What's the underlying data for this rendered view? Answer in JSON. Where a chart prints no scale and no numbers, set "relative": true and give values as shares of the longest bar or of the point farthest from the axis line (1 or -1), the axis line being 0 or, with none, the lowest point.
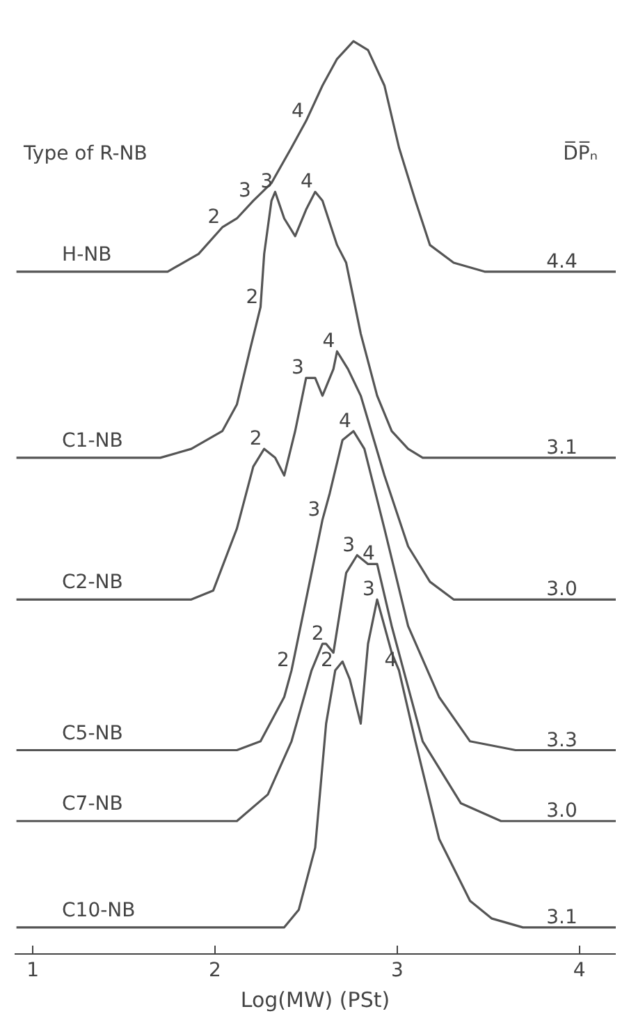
{
  "chart_data": {
    "type": "line",
    "relative": true,
    "xlabel": "Log(MW) (PSt)",
    "legend_title": "Type of R-NB",
    "xlim": [
      0.9,
      4.2
    ],
    "xticks": [
      1,
      2,
      3,
      4
    ],
    "grid": false,
    "marker": "none",
    "line_style": "solid",
    "series": [
      {
        "name": "H-NB",
        "color": "#555555",
        "x": [
          0.91,
          1.74,
          1.91,
          2.04,
          2.12,
          2.21,
          2.31,
          2.42,
          2.5,
          2.59,
          2.67,
          2.76,
          2.84,
          2.93,
          3.01,
          3.1,
          3.18,
          3.31,
          3.48,
          4.2
        ],
        "values": [
          0.74,
          0.74,
          0.76,
          0.79,
          0.8,
          0.82,
          0.84,
          0.88,
          0.91,
          0.95,
          0.98,
          1.0,
          0.99,
          0.95,
          0.88,
          0.82,
          0.77,
          0.75,
          0.74,
          0.74
        ]
      },
      {
        "name": "C1-NB",
        "color": "#555555",
        "x": [
          0.91,
          1.7,
          1.87,
          2.04,
          2.12,
          2.19,
          2.25,
          2.27,
          2.31,
          2.33,
          2.38,
          2.44,
          2.5,
          2.55,
          2.59,
          2.67,
          2.72,
          2.8,
          2.89,
          2.97,
          3.06,
          3.14,
          4.2
        ],
        "values": [
          0.53,
          0.53,
          0.54,
          0.56,
          0.59,
          0.65,
          0.7,
          0.76,
          0.82,
          0.83,
          0.8,
          0.78,
          0.81,
          0.83,
          0.82,
          0.77,
          0.75,
          0.67,
          0.6,
          0.56,
          0.54,
          0.53,
          0.53
        ]
      },
      {
        "name": "C2-NB",
        "color": "#555555",
        "x": [
          0.91,
          1.87,
          1.99,
          2.12,
          2.21,
          2.27,
          2.33,
          2.38,
          2.44,
          2.5,
          2.55,
          2.59,
          2.65,
          2.67,
          2.73,
          2.8,
          2.93,
          3.06,
          3.18,
          3.31,
          4.2
        ],
        "values": [
          0.37,
          0.37,
          0.38,
          0.45,
          0.52,
          0.54,
          0.53,
          0.51,
          0.56,
          0.62,
          0.62,
          0.6,
          0.63,
          0.65,
          0.63,
          0.6,
          0.51,
          0.43,
          0.39,
          0.37,
          0.37
        ]
      },
      {
        "name": "C5-NB",
        "color": "#555555",
        "x": [
          0.91,
          2.12,
          2.25,
          2.38,
          2.42,
          2.5,
          2.59,
          2.63,
          2.7,
          2.76,
          2.82,
          2.93,
          3.06,
          3.23,
          3.4,
          3.65,
          4.2
        ],
        "values": [
          0.2,
          0.2,
          0.21,
          0.26,
          0.29,
          0.37,
          0.46,
          0.49,
          0.55,
          0.56,
          0.54,
          0.45,
          0.34,
          0.26,
          0.21,
          0.2,
          0.2
        ]
      },
      {
        "name": "C7-NB",
        "color": "#555555",
        "x": [
          0.91,
          2.12,
          2.29,
          2.42,
          2.53,
          2.59,
          2.61,
          2.65,
          2.72,
          2.78,
          2.84,
          2.89,
          2.97,
          3.14,
          3.35,
          3.57,
          4.2
        ],
        "values": [
          0.12,
          0.12,
          0.15,
          0.21,
          0.29,
          0.32,
          0.32,
          0.31,
          0.4,
          0.42,
          0.41,
          0.41,
          0.34,
          0.21,
          0.14,
          0.12,
          0.12
        ]
      },
      {
        "name": "C10-NB",
        "color": "#555555",
        "x": [
          0.91,
          2.38,
          2.46,
          2.55,
          2.61,
          2.66,
          2.7,
          2.74,
          2.8,
          2.84,
          2.89,
          2.93,
          2.97,
          3.01,
          3.1,
          3.23,
          3.4,
          3.52,
          3.69,
          4.2
        ],
        "values": [
          0.0,
          0.0,
          0.02,
          0.09,
          0.23,
          0.29,
          0.3,
          0.28,
          0.23,
          0.32,
          0.37,
          0.34,
          0.31,
          0.29,
          0.21,
          0.1,
          0.03,
          0.01,
          0.0,
          0.0
        ]
      }
    ],
    "annotations": [
      "D̅P̅ₙ",
      {
        "text": "4.4",
        "x": 3.95,
        "y": 0.74
      },
      {
        "text": "3.1",
        "x": 3.95,
        "y": 0.53
      },
      {
        "text": "3.0",
        "x": 3.95,
        "y": 0.37
      },
      {
        "text": "3.3",
        "x": 3.95,
        "y": 0.2
      },
      {
        "text": "3.0",
        "x": 3.95,
        "y": 0.12
      },
      {
        "text": "3.1",
        "x": 3.95,
        "y": 0.0
      },
      {
        "text": "2",
        "x": 2.04,
        "y": 0.79
      },
      {
        "text": "3",
        "x": 2.21,
        "y": 0.82
      },
      {
        "text": "4",
        "x": 2.5,
        "y": 0.91
      },
      {
        "text": "2",
        "x": 2.25,
        "y": 0.7
      },
      {
        "text": "3",
        "x": 2.33,
        "y": 0.83
      },
      {
        "text": "4",
        "x": 2.55,
        "y": 0.83
      },
      {
        "text": "2",
        "x": 2.27,
        "y": 0.54
      },
      {
        "text": "3",
        "x": 2.5,
        "y": 0.62
      },
      {
        "text": "4",
        "x": 2.67,
        "y": 0.65
      },
      {
        "text": "2",
        "x": 2.42,
        "y": 0.29
      },
      {
        "text": "3",
        "x": 2.59,
        "y": 0.46
      },
      {
        "text": "4",
        "x": 2.76,
        "y": 0.56
      },
      {
        "text": "2",
        "x": 2.61,
        "y": 0.32
      },
      {
        "text": "3",
        "x": 2.78,
        "y": 0.42
      },
      {
        "text": "4",
        "x": 2.89,
        "y": 0.41
      },
      {
        "text": "2",
        "x": 2.66,
        "y": 0.29
      },
      {
        "text": "3",
        "x": 2.89,
        "y": 0.37
      },
      {
        "text": "4",
        "x": 3.01,
        "y": 0.29
      }
    ]
  }
}
